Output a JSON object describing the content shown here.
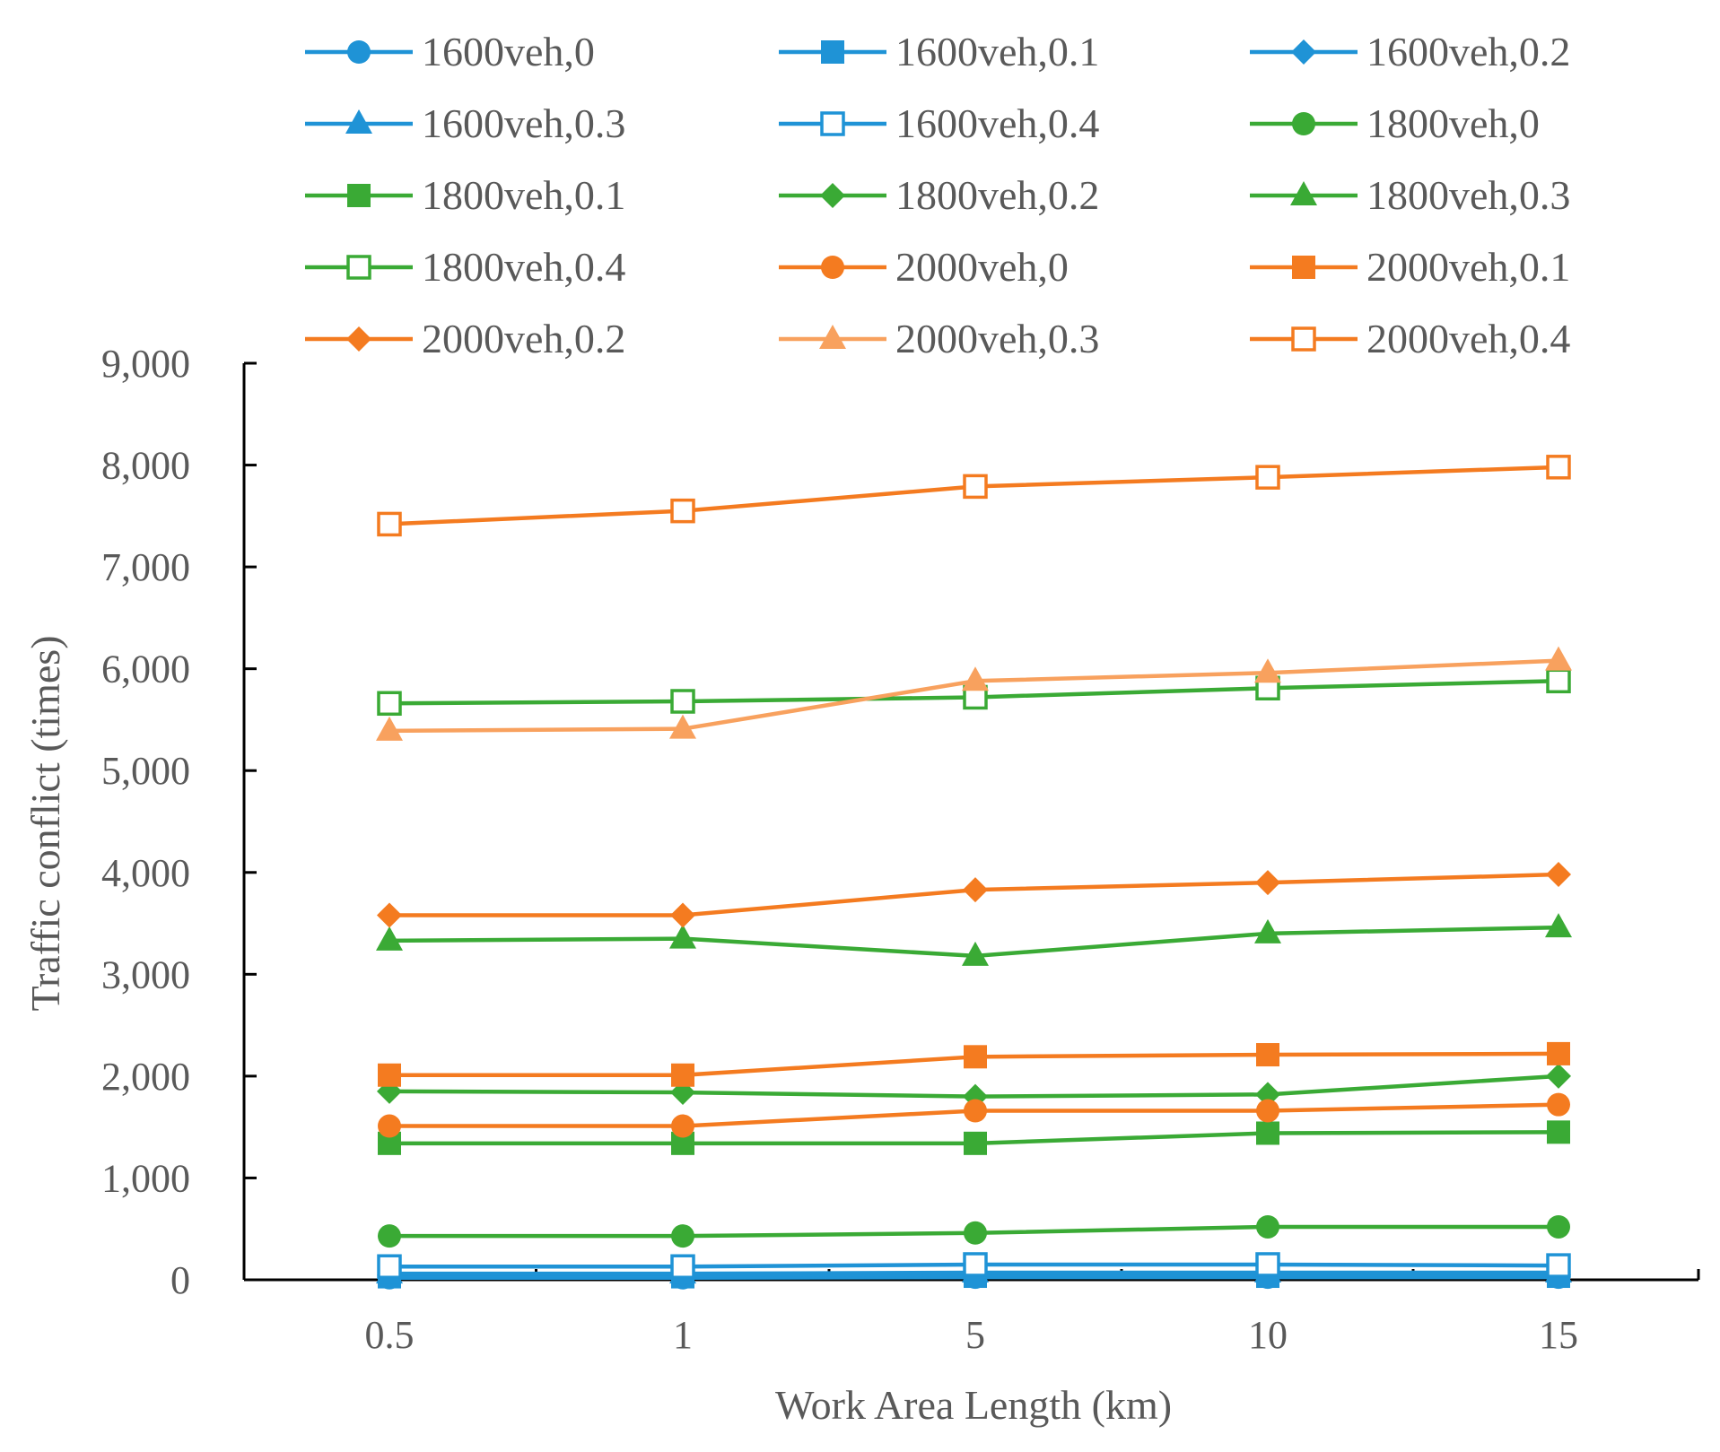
{
  "chart_data": {
    "type": "line",
    "title": "",
    "xlabel": "Work Area Length (km)",
    "ylabel": "Traffic conflict (times)",
    "categories": [
      "0.5",
      "1",
      "5",
      "10",
      "15"
    ],
    "ylim": [
      0,
      9000
    ],
    "yticks": [
      0,
      1000,
      2000,
      3000,
      4000,
      5000,
      6000,
      7000,
      8000,
      9000
    ],
    "ytick_labels": [
      "0",
      "1,000",
      "2,000",
      "3,000",
      "4,000",
      "5,000",
      "6,000",
      "7,000",
      "8,000",
      "9,000"
    ],
    "grid": false,
    "legend_position": "top",
    "series": [
      {
        "name": "1600veh,0",
        "color": "#1f93d6",
        "marker": "circle",
        "values": [
          20,
          20,
          25,
          25,
          25
        ]
      },
      {
        "name": "1600veh,0.1",
        "color": "#1f93d6",
        "marker": "square",
        "values": [
          30,
          30,
          35,
          35,
          35
        ]
      },
      {
        "name": "1600veh,0.2",
        "color": "#1f93d6",
        "marker": "diamond",
        "values": [
          45,
          45,
          50,
          50,
          50
        ]
      },
      {
        "name": "1600veh,0.3",
        "color": "#1f93d6",
        "marker": "triangle",
        "values": [
          60,
          60,
          70,
          70,
          70
        ]
      },
      {
        "name": "1600veh,0.4",
        "color": "#1f93d6",
        "marker": "square-open",
        "values": [
          130,
          130,
          150,
          150,
          140
        ]
      },
      {
        "name": "1800veh,0",
        "color": "#3aaa35",
        "marker": "circle",
        "values": [
          430,
          430,
          460,
          520,
          520
        ]
      },
      {
        "name": "1800veh,0.1",
        "color": "#3aaa35",
        "marker": "square",
        "values": [
          1340,
          1340,
          1340,
          1440,
          1450
        ]
      },
      {
        "name": "1800veh,0.2",
        "color": "#3aaa35",
        "marker": "diamond",
        "values": [
          1850,
          1840,
          1800,
          1820,
          2000
        ]
      },
      {
        "name": "1800veh,0.3",
        "color": "#3aaa35",
        "marker": "triangle",
        "values": [
          3330,
          3350,
          3180,
          3400,
          3460
        ]
      },
      {
        "name": "1800veh,0.4",
        "color": "#3aaa35",
        "marker": "square-open",
        "values": [
          5660,
          5680,
          5720,
          5810,
          5880
        ]
      },
      {
        "name": "2000veh,0",
        "color": "#f47b20",
        "marker": "circle",
        "values": [
          1510,
          1510,
          1660,
          1660,
          1720
        ]
      },
      {
        "name": "2000veh,0.1",
        "color": "#f47b20",
        "marker": "square",
        "values": [
          2010,
          2010,
          2190,
          2210,
          2220
        ]
      },
      {
        "name": "2000veh,0.2",
        "color": "#f47b20",
        "marker": "diamond",
        "values": [
          3580,
          3580,
          3830,
          3900,
          3980
        ]
      },
      {
        "name": "2000veh,0.3",
        "color": "#f8a15e",
        "marker": "triangle",
        "values": [
          5390,
          5410,
          5880,
          5960,
          6080
        ]
      },
      {
        "name": "2000veh,0.4",
        "color": "#f47b20",
        "marker": "square-open",
        "values": [
          7420,
          7550,
          7790,
          7880,
          7980
        ]
      }
    ]
  }
}
